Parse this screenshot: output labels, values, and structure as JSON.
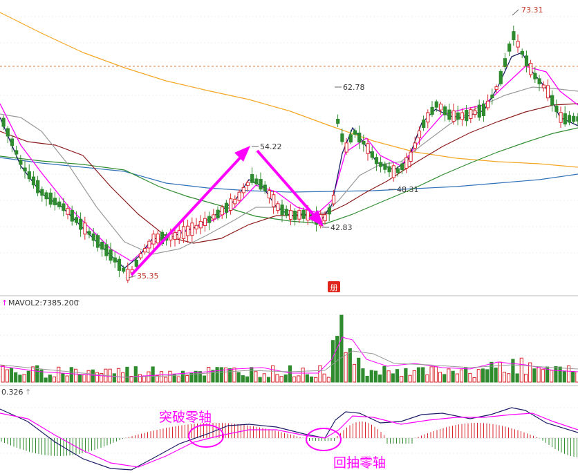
{
  "colors": {
    "up": "#d9262e",
    "down": "#2e8b2e",
    "ma5": "#1a1a66",
    "ma10": "#ff00ff",
    "ma20": "#999999",
    "ma30": "#8b1a1a",
    "ma60": "#2e8b2e",
    "ma120": "#2f70b8",
    "ma250": "#f5a623",
    "annotation": "#ff00ff",
    "dif": "#1a1a66",
    "dea": "#ff00ff"
  },
  "labels": {
    "high_73": "73.31",
    "high_62": "62.78",
    "high_54": "54.22",
    "low_48": "48.31",
    "low_42": "42.83",
    "low_35": "35.35",
    "volume_title": "MAVOL2:7385.200",
    "macd_title": "0.326",
    "marker_char": "册",
    "annotation_breakout": "突破零轴",
    "annotation_pullback": "回抽零轴"
  },
  "chart_data": {
    "type": "candlestick",
    "price_markers": [
      {
        "label": "73.31",
        "value": 73.31,
        "kind": "high"
      },
      {
        "label": "62.78",
        "value": 62.78,
        "kind": "high"
      },
      {
        "label": "54.22",
        "value": 54.22,
        "kind": "high"
      },
      {
        "label": "48.31",
        "value": 48.31,
        "kind": "low"
      },
      {
        "label": "42.83",
        "value": 42.83,
        "kind": "low"
      },
      {
        "label": "35.35",
        "value": 35.35,
        "kind": "low"
      }
    ],
    "volume_indicator": {
      "name": "MAVOL2",
      "value": 7385.2
    },
    "macd_indicator": {
      "value": 0.326
    },
    "annotations": [
      "突破零轴",
      "回抽零轴"
    ]
  }
}
